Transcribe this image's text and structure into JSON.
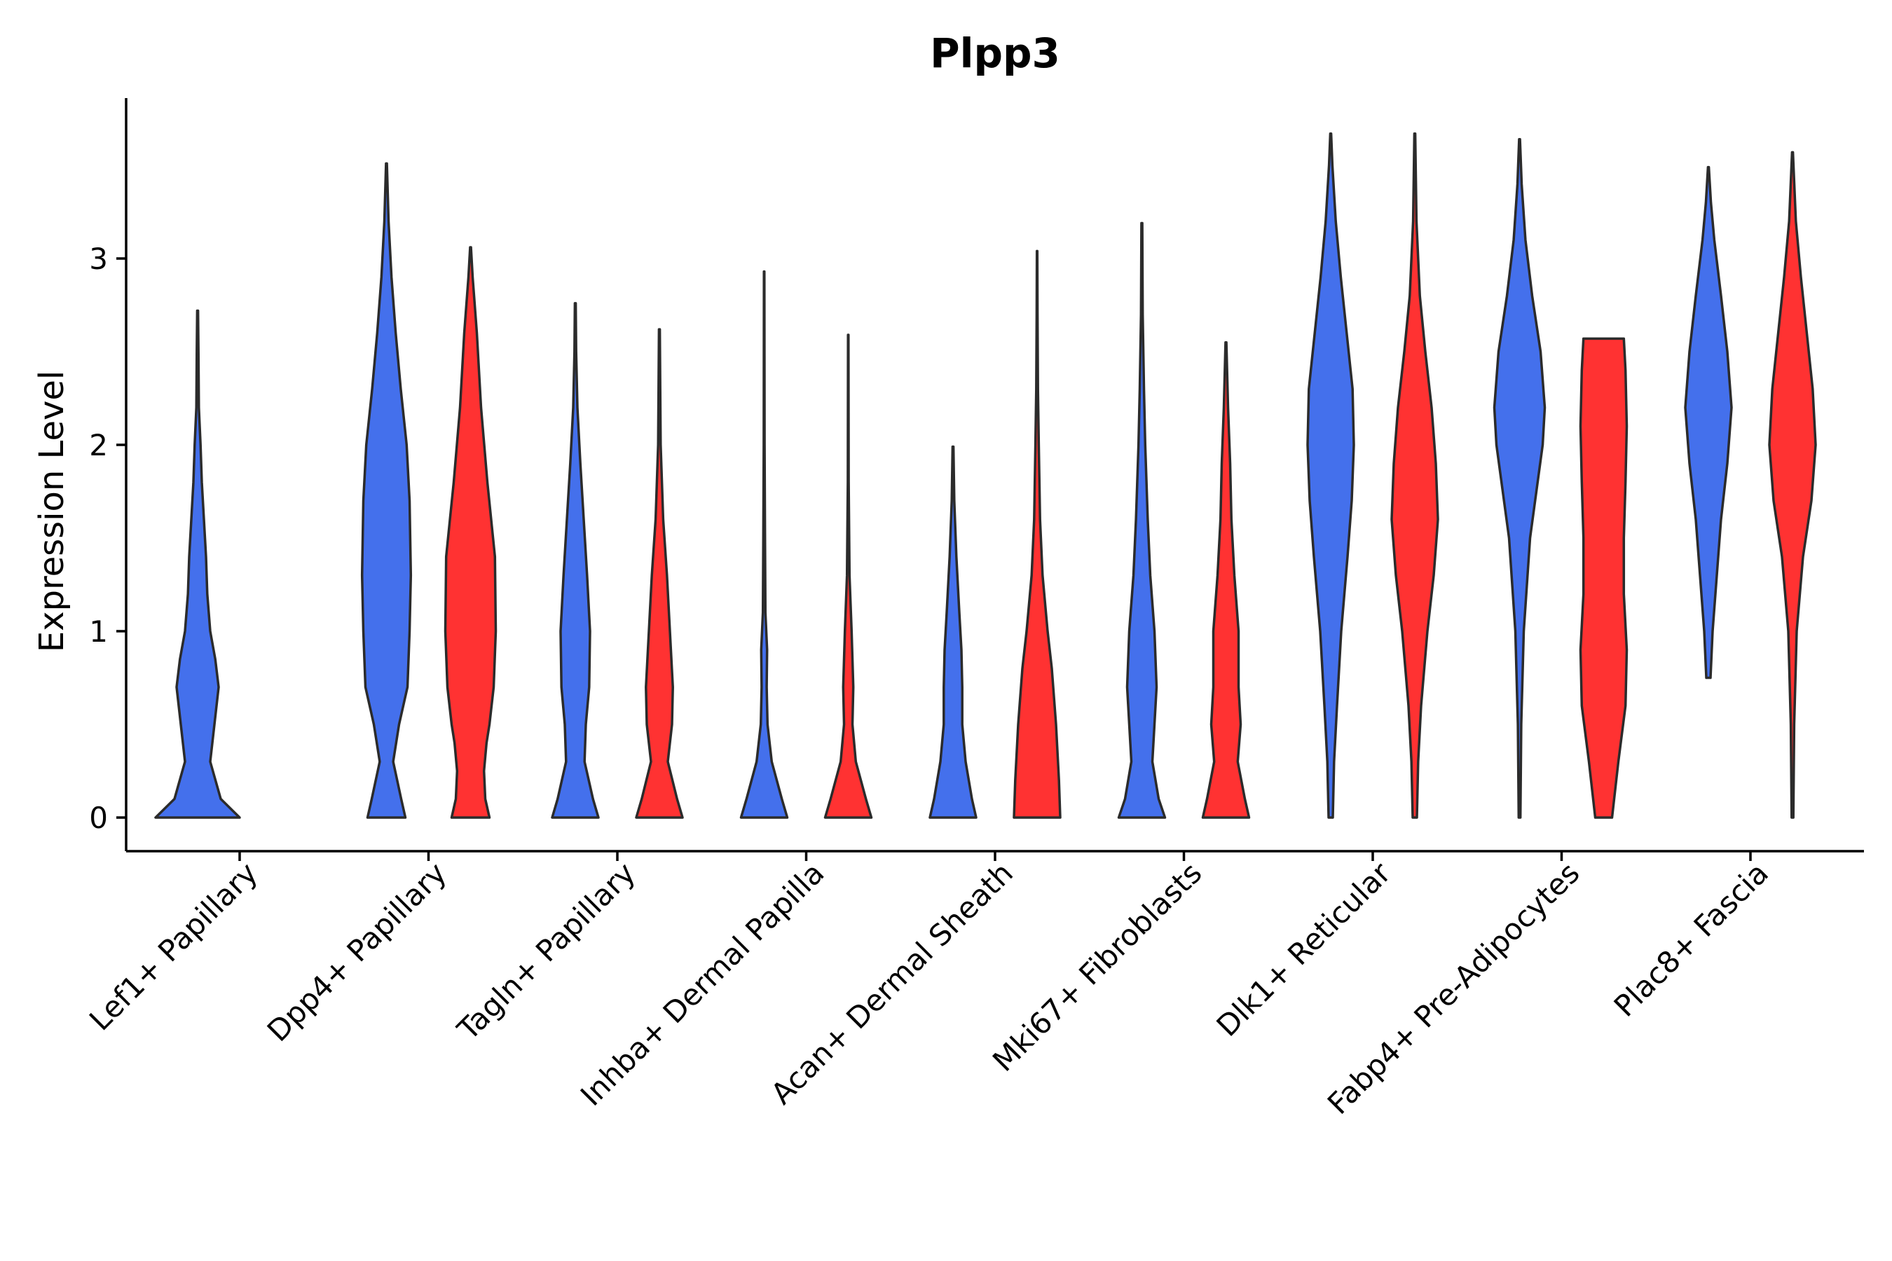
{
  "chart_data": {
    "type": "violin",
    "title": "Plpp3",
    "xlabel": "",
    "ylabel": "Expression Level",
    "ylim": [
      -0.19,
      3.85
    ],
    "yticks": [
      0,
      1,
      2,
      3
    ],
    "grid": false,
    "legend": "none",
    "categories": [
      "Lef1+ Papillary",
      "Dpp4+ Papillary",
      "Tagln+ Papillary",
      "Inhba+ Dermal Papilla",
      "Acan+ Dermal Sheath",
      "Mki67+ Fibroblasts",
      "Dlk1+ Reticular",
      "Fabp4+ Pre-Adipocytes",
      "Plac8+ Fascia"
    ],
    "series": [
      {
        "name": "blue group",
        "color": "#4470EC"
      },
      {
        "name": "red group",
        "color": "#FF3232"
      }
    ],
    "violins": [
      {
        "category": 0,
        "series": 0,
        "min": 0,
        "max": 2.72,
        "density": [
          [
            0,
            1.0
          ],
          [
            0.1,
            0.55
          ],
          [
            0.3,
            0.3
          ],
          [
            0.5,
            0.4
          ],
          [
            0.7,
            0.5
          ],
          [
            0.85,
            0.42
          ],
          [
            1.0,
            0.3
          ],
          [
            1.2,
            0.23
          ],
          [
            1.4,
            0.2
          ],
          [
            1.6,
            0.15
          ],
          [
            1.8,
            0.1
          ],
          [
            2.0,
            0.07
          ],
          [
            2.2,
            0.03
          ],
          [
            2.5,
            0.02
          ],
          [
            2.72,
            0.01
          ]
        ]
      },
      {
        "category": 1,
        "series": 0,
        "min": 0,
        "max": 3.51,
        "density": [
          [
            0,
            0.45
          ],
          [
            0.1,
            0.35
          ],
          [
            0.3,
            0.16
          ],
          [
            0.5,
            0.3
          ],
          [
            0.7,
            0.5
          ],
          [
            1.0,
            0.55
          ],
          [
            1.3,
            0.58
          ],
          [
            1.7,
            0.55
          ],
          [
            2.0,
            0.48
          ],
          [
            2.3,
            0.34
          ],
          [
            2.6,
            0.22
          ],
          [
            2.9,
            0.12
          ],
          [
            3.2,
            0.05
          ],
          [
            3.51,
            0.01
          ]
        ]
      },
      {
        "category": 1,
        "series": 1,
        "min": 0,
        "max": 3.06,
        "density": [
          [
            0,
            0.45
          ],
          [
            0.1,
            0.35
          ],
          [
            0.25,
            0.32
          ],
          [
            0.4,
            0.38
          ],
          [
            0.5,
            0.45
          ],
          [
            0.7,
            0.55
          ],
          [
            1.0,
            0.6
          ],
          [
            1.4,
            0.58
          ],
          [
            1.8,
            0.4
          ],
          [
            2.2,
            0.25
          ],
          [
            2.6,
            0.15
          ],
          [
            2.9,
            0.05
          ],
          [
            3.06,
            0.01
          ]
        ]
      },
      {
        "category": 2,
        "series": 0,
        "min": 0,
        "max": 2.76,
        "density": [
          [
            0,
            0.55
          ],
          [
            0.1,
            0.42
          ],
          [
            0.3,
            0.22
          ],
          [
            0.5,
            0.25
          ],
          [
            0.7,
            0.33
          ],
          [
            1.0,
            0.35
          ],
          [
            1.3,
            0.28
          ],
          [
            1.6,
            0.2
          ],
          [
            1.9,
            0.12
          ],
          [
            2.2,
            0.05
          ],
          [
            2.5,
            0.02
          ],
          [
            2.76,
            0.01
          ]
        ]
      },
      {
        "category": 2,
        "series": 1,
        "min": 0,
        "max": 2.62,
        "density": [
          [
            0,
            0.55
          ],
          [
            0.1,
            0.42
          ],
          [
            0.3,
            0.2
          ],
          [
            0.5,
            0.3
          ],
          [
            0.7,
            0.32
          ],
          [
            1.0,
            0.25
          ],
          [
            1.3,
            0.18
          ],
          [
            1.6,
            0.09
          ],
          [
            2.0,
            0.03
          ],
          [
            2.3,
            0.02
          ],
          [
            2.62,
            0.01
          ]
        ]
      },
      {
        "category": 3,
        "series": 0,
        "min": 0,
        "max": 2.93,
        "density": [
          [
            0,
            0.55
          ],
          [
            0.1,
            0.42
          ],
          [
            0.3,
            0.18
          ],
          [
            0.5,
            0.08
          ],
          [
            0.7,
            0.06
          ],
          [
            0.9,
            0.07
          ],
          [
            1.1,
            0.03
          ],
          [
            1.5,
            0.02
          ],
          [
            2.0,
            0.01
          ],
          [
            2.93,
            0.005
          ]
        ]
      },
      {
        "category": 3,
        "series": 1,
        "min": 0,
        "max": 2.59,
        "density": [
          [
            0,
            0.55
          ],
          [
            0.1,
            0.42
          ],
          [
            0.3,
            0.18
          ],
          [
            0.5,
            0.1
          ],
          [
            0.7,
            0.12
          ],
          [
            1.0,
            0.08
          ],
          [
            1.3,
            0.03
          ],
          [
            1.8,
            0.01
          ],
          [
            2.59,
            0.005
          ]
        ]
      },
      {
        "category": 4,
        "series": 0,
        "min": 0,
        "max": 1.99,
        "density": [
          [
            0,
            0.55
          ],
          [
            0.1,
            0.45
          ],
          [
            0.3,
            0.3
          ],
          [
            0.5,
            0.22
          ],
          [
            0.7,
            0.22
          ],
          [
            0.9,
            0.2
          ],
          [
            1.1,
            0.15
          ],
          [
            1.4,
            0.08
          ],
          [
            1.7,
            0.03
          ],
          [
            1.99,
            0.01
          ]
        ]
      },
      {
        "category": 4,
        "series": 1,
        "min": 0,
        "max": 3.04,
        "density": [
          [
            0,
            0.55
          ],
          [
            0.2,
            0.52
          ],
          [
            0.5,
            0.45
          ],
          [
            0.8,
            0.35
          ],
          [
            1.0,
            0.25
          ],
          [
            1.3,
            0.13
          ],
          [
            1.6,
            0.07
          ],
          [
            2.0,
            0.04
          ],
          [
            2.3,
            0.02
          ],
          [
            2.7,
            0.01
          ],
          [
            3.04,
            0.005
          ]
        ]
      },
      {
        "category": 5,
        "series": 0,
        "min": 0,
        "max": 3.19,
        "density": [
          [
            0,
            0.55
          ],
          [
            0.1,
            0.4
          ],
          [
            0.3,
            0.25
          ],
          [
            0.5,
            0.3
          ],
          [
            0.7,
            0.35
          ],
          [
            1.0,
            0.3
          ],
          [
            1.3,
            0.2
          ],
          [
            1.6,
            0.14
          ],
          [
            2.0,
            0.08
          ],
          [
            2.3,
            0.05
          ],
          [
            2.7,
            0.02
          ],
          [
            3.19,
            0.01
          ]
        ]
      },
      {
        "category": 5,
        "series": 1,
        "min": 0,
        "max": 2.55,
        "density": [
          [
            0,
            0.55
          ],
          [
            0.1,
            0.45
          ],
          [
            0.3,
            0.28
          ],
          [
            0.5,
            0.35
          ],
          [
            0.7,
            0.3
          ],
          [
            1.0,
            0.3
          ],
          [
            1.3,
            0.2
          ],
          [
            1.6,
            0.13
          ],
          [
            1.9,
            0.1
          ],
          [
            2.2,
            0.05
          ],
          [
            2.55,
            0.01
          ]
        ]
      },
      {
        "category": 6,
        "series": 0,
        "min": 0,
        "max": 3.67,
        "density": [
          [
            0,
            0.05
          ],
          [
            0.3,
            0.08
          ],
          [
            0.6,
            0.15
          ],
          [
            1.0,
            0.25
          ],
          [
            1.4,
            0.4
          ],
          [
            1.7,
            0.5
          ],
          [
            2.0,
            0.55
          ],
          [
            2.3,
            0.52
          ],
          [
            2.6,
            0.38
          ],
          [
            2.9,
            0.24
          ],
          [
            3.2,
            0.12
          ],
          [
            3.5,
            0.04
          ],
          [
            3.67,
            0.01
          ]
        ]
      },
      {
        "category": 6,
        "series": 1,
        "min": 0,
        "max": 3.67,
        "density": [
          [
            0,
            0.05
          ],
          [
            0.3,
            0.08
          ],
          [
            0.6,
            0.15
          ],
          [
            1.0,
            0.3
          ],
          [
            1.3,
            0.45
          ],
          [
            1.6,
            0.55
          ],
          [
            1.9,
            0.5
          ],
          [
            2.2,
            0.4
          ],
          [
            2.5,
            0.25
          ],
          [
            2.8,
            0.12
          ],
          [
            3.2,
            0.04
          ],
          [
            3.67,
            0.01
          ]
        ]
      },
      {
        "category": 7,
        "series": 0,
        "min": 0,
        "max": 3.64,
        "density": [
          [
            0,
            0.02
          ],
          [
            0.5,
            0.04
          ],
          [
            1.0,
            0.1
          ],
          [
            1.5,
            0.25
          ],
          [
            2.0,
            0.55
          ],
          [
            2.2,
            0.6
          ],
          [
            2.5,
            0.5
          ],
          [
            2.8,
            0.3
          ],
          [
            3.1,
            0.14
          ],
          [
            3.4,
            0.05
          ],
          [
            3.64,
            0.01
          ]
        ]
      },
      {
        "category": 7,
        "series": 1,
        "min": 0,
        "max": 2.57,
        "density": [
          [
            0,
            0.2
          ],
          [
            0.3,
            0.35
          ],
          [
            0.6,
            0.52
          ],
          [
            0.9,
            0.55
          ],
          [
            1.2,
            0.48
          ],
          [
            1.5,
            0.48
          ],
          [
            1.8,
            0.52
          ],
          [
            2.1,
            0.55
          ],
          [
            2.4,
            0.52
          ],
          [
            2.57,
            0.48
          ]
        ]
      },
      {
        "category": 8,
        "series": 0,
        "min": 0.75,
        "max": 3.49,
        "density": [
          [
            0.75,
            0.05
          ],
          [
            1.0,
            0.1
          ],
          [
            1.3,
            0.2
          ],
          [
            1.6,
            0.3
          ],
          [
            1.9,
            0.45
          ],
          [
            2.2,
            0.55
          ],
          [
            2.5,
            0.45
          ],
          [
            2.8,
            0.3
          ],
          [
            3.1,
            0.14
          ],
          [
            3.3,
            0.06
          ],
          [
            3.49,
            0.01
          ]
        ]
      },
      {
        "category": 8,
        "series": 1,
        "min": 0,
        "max": 3.57,
        "density": [
          [
            0,
            0.02
          ],
          [
            0.5,
            0.04
          ],
          [
            1.0,
            0.1
          ],
          [
            1.4,
            0.25
          ],
          [
            1.7,
            0.45
          ],
          [
            2.0,
            0.55
          ],
          [
            2.3,
            0.48
          ],
          [
            2.6,
            0.34
          ],
          [
            2.9,
            0.2
          ],
          [
            3.2,
            0.08
          ],
          [
            3.57,
            0.01
          ]
        ]
      }
    ]
  }
}
